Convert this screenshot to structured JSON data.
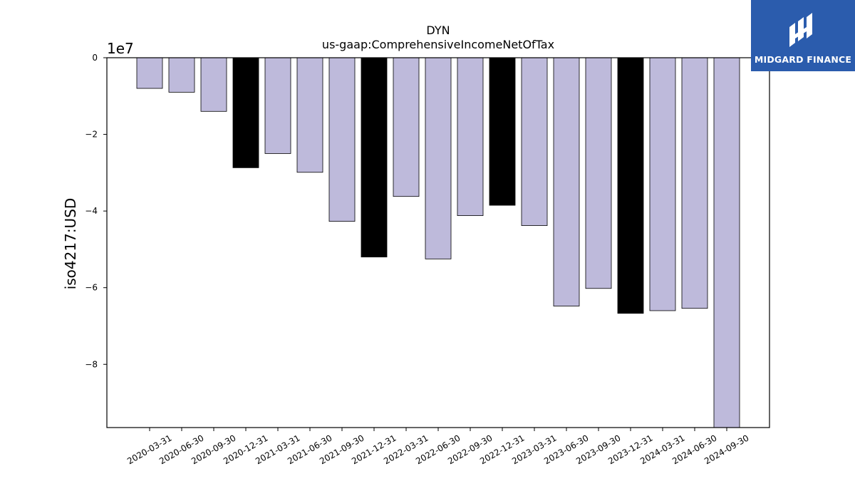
{
  "brand": {
    "name": "MIDGARD FINANCE",
    "logo_icon": "midgard-logo-icon",
    "color": "#2b5cad"
  },
  "chart_data": {
    "type": "bar",
    "title": "DYN",
    "subtitle": "us-gaap:ComprehensiveIncomeNetOfTax",
    "ylabel": "iso4217:USD",
    "xlabel": "",
    "y_offset_label": "1e7",
    "ylim": [
      -9.65,
      0
    ],
    "y_ticks": [
      0,
      -2,
      -4,
      -6,
      -8
    ],
    "y_tick_labels": [
      "0",
      "−2",
      "−4",
      "−6",
      "−8"
    ],
    "categories": [
      "2020-03-31",
      "2020-06-30",
      "2020-09-30",
      "2020-12-31",
      "2021-03-31",
      "2021-06-30",
      "2021-09-30",
      "2021-12-31",
      "2022-03-31",
      "2022-06-30",
      "2022-09-30",
      "2022-12-31",
      "2023-03-31",
      "2023-06-30",
      "2023-09-30",
      "2023-12-31",
      "2024-03-31",
      "2024-06-30",
      "2024-09-30"
    ],
    "values": [
      -0.8,
      -0.9,
      -1.4,
      -2.87,
      -2.5,
      -2.99,
      -4.27,
      -5.2,
      -3.62,
      -5.25,
      -4.12,
      -3.85,
      -4.38,
      -6.48,
      -6.02,
      -6.67,
      -6.6,
      -6.54,
      -9.65
    ],
    "colors": [
      "#bebadb",
      "#bebadb",
      "#bebadb",
      "#000000",
      "#bebadb",
      "#bebadb",
      "#bebadb",
      "#000000",
      "#bebadb",
      "#bebadb",
      "#bebadb",
      "#000000",
      "#bebadb",
      "#bebadb",
      "#bebadb",
      "#000000",
      "#bebadb",
      "#bebadb",
      "#bebadb"
    ],
    "grid": false,
    "legend": "none"
  }
}
